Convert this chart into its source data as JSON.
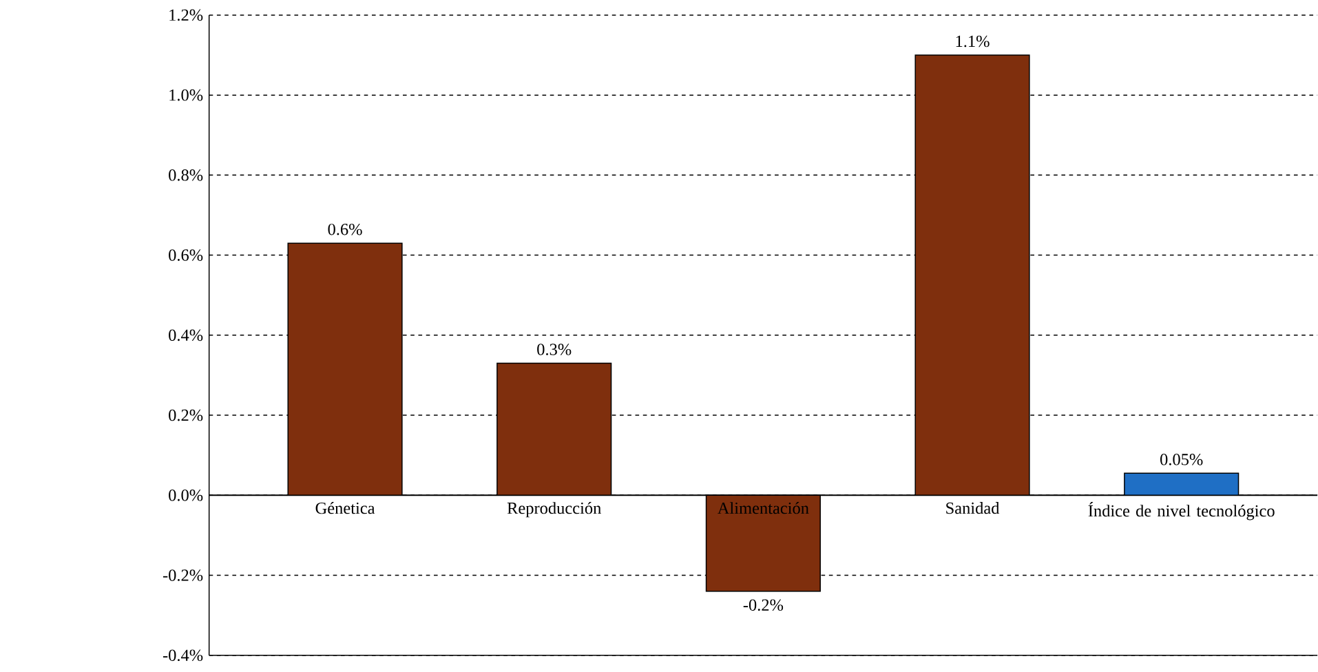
{
  "chart_data": {
    "type": "bar",
    "categories": [
      "Génetica",
      "Reproducción",
      "Alimentación",
      "Sanidad",
      "Índice de nivel tecnológico"
    ],
    "values": [
      0.63,
      0.33,
      -0.24,
      1.1,
      0.055
    ],
    "colors": [
      "#7f2f0d",
      "#7f2f0d",
      "#7f2f0d",
      "#7f2f0d",
      "#1f6fc5"
    ],
    "value_labels": [
      "0.6%",
      "0.3%",
      "-0.2%",
      "1.1%",
      "0.05%"
    ],
    "ylim": [
      -0.4,
      1.2
    ],
    "yticks": [
      {
        "value": -0.4,
        "label": "-0.4%"
      },
      {
        "value": -0.2,
        "label": "-0.2%"
      },
      {
        "value": 0,
        "label": "0.0%"
      },
      {
        "value": 0.2,
        "label": "0.2%"
      },
      {
        "value": 0.4,
        "label": "0.4%"
      },
      {
        "value": 0.6,
        "label": "0.6%"
      },
      {
        "value": 0.8,
        "label": "0.8%"
      },
      {
        "value": 1.0,
        "label": "1.0%"
      },
      {
        "value": 1.2,
        "label": "1.2%"
      }
    ],
    "grid": "y"
  }
}
